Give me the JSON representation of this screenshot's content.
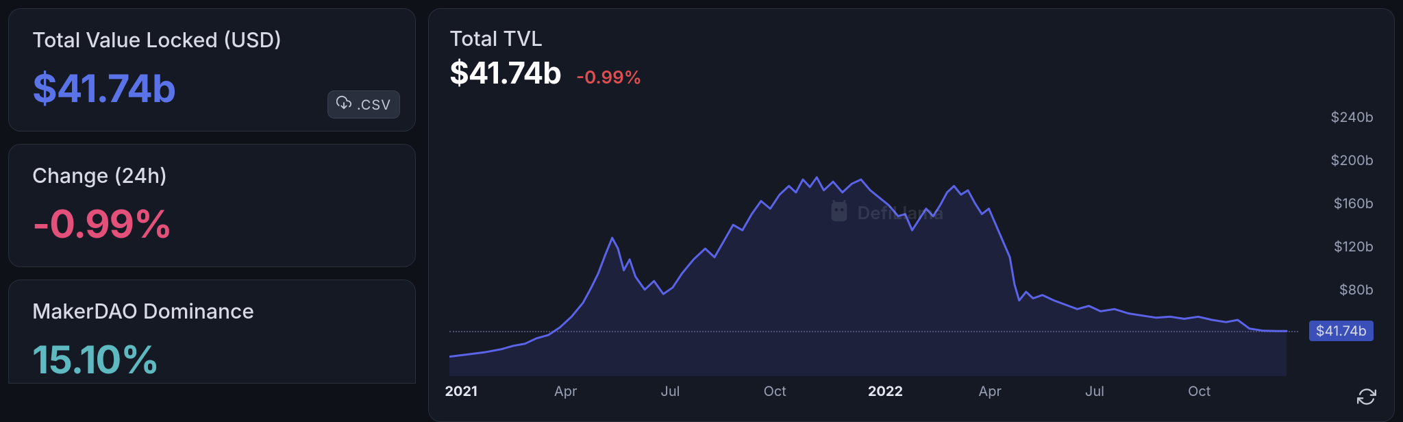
{
  "sidebar": {
    "tvl_card": {
      "title": "Total Value Locked (USD)",
      "value": "$41.74b"
    },
    "csv_label": ".CSV",
    "change_card": {
      "title": "Change (24h)",
      "value": "-0.99%"
    },
    "dominance_card": {
      "title": "MakerDAO Dominance",
      "value": "15.10%"
    }
  },
  "chart": {
    "title": "Total TVL",
    "value": "$41.74b",
    "change": "-0.99%",
    "watermark": "DefiLlama",
    "type": "area",
    "y_axis": {
      "min": 0,
      "max": 260,
      "ticks": [
        {
          "v": 240,
          "label": "$240b"
        },
        {
          "v": 200,
          "label": "$200b"
        },
        {
          "v": 160,
          "label": "$160b"
        },
        {
          "v": 120,
          "label": "$120b"
        },
        {
          "v": 80,
          "label": "$80b"
        }
      ],
      "current": {
        "v": 41.74,
        "label": "$41.74b"
      }
    },
    "x_axis": {
      "min": 0,
      "max": 730,
      "ticks": [
        {
          "d": 10,
          "label": "2021",
          "bold": true
        },
        {
          "d": 100,
          "label": "Apr"
        },
        {
          "d": 190,
          "label": "Jul"
        },
        {
          "d": 280,
          "label": "Oct"
        },
        {
          "d": 375,
          "label": "2022",
          "bold": true
        },
        {
          "d": 465,
          "label": "Apr"
        },
        {
          "d": 555,
          "label": "Jul"
        },
        {
          "d": 645,
          "label": "Oct"
        }
      ]
    },
    "style": {
      "line_color": "#5b64e8",
      "line_width": 3,
      "fill_color": "#5b64e8",
      "fill_opacity": 0.12,
      "background": "#151924",
      "dotted_line_color": "#4a5070"
    },
    "series": [
      {
        "d": 0,
        "v": 18
      },
      {
        "d": 15,
        "v": 20
      },
      {
        "d": 30,
        "v": 22
      },
      {
        "d": 45,
        "v": 25
      },
      {
        "d": 55,
        "v": 28
      },
      {
        "d": 65,
        "v": 30
      },
      {
        "d": 75,
        "v": 35
      },
      {
        "d": 85,
        "v": 38
      },
      {
        "d": 95,
        "v": 45
      },
      {
        "d": 105,
        "v": 55
      },
      {
        "d": 115,
        "v": 68
      },
      {
        "d": 122,
        "v": 82
      },
      {
        "d": 128,
        "v": 95
      },
      {
        "d": 134,
        "v": 112
      },
      {
        "d": 140,
        "v": 128
      },
      {
        "d": 145,
        "v": 118
      },
      {
        "d": 150,
        "v": 98
      },
      {
        "d": 155,
        "v": 108
      },
      {
        "d": 160,
        "v": 92
      },
      {
        "d": 168,
        "v": 80
      },
      {
        "d": 176,
        "v": 88
      },
      {
        "d": 184,
        "v": 76
      },
      {
        "d": 192,
        "v": 82
      },
      {
        "d": 200,
        "v": 95
      },
      {
        "d": 210,
        "v": 108
      },
      {
        "d": 220,
        "v": 118
      },
      {
        "d": 228,
        "v": 110
      },
      {
        "d": 236,
        "v": 125
      },
      {
        "d": 244,
        "v": 140
      },
      {
        "d": 252,
        "v": 135
      },
      {
        "d": 260,
        "v": 150
      },
      {
        "d": 268,
        "v": 162
      },
      {
        "d": 276,
        "v": 155
      },
      {
        "d": 284,
        "v": 168
      },
      {
        "d": 292,
        "v": 176
      },
      {
        "d": 298,
        "v": 170
      },
      {
        "d": 304,
        "v": 182
      },
      {
        "d": 310,
        "v": 175
      },
      {
        "d": 316,
        "v": 184
      },
      {
        "d": 322,
        "v": 172
      },
      {
        "d": 330,
        "v": 180
      },
      {
        "d": 338,
        "v": 170
      },
      {
        "d": 346,
        "v": 178
      },
      {
        "d": 354,
        "v": 182
      },
      {
        "d": 362,
        "v": 172
      },
      {
        "d": 370,
        "v": 165
      },
      {
        "d": 378,
        "v": 158
      },
      {
        "d": 386,
        "v": 148
      },
      {
        "d": 392,
        "v": 150
      },
      {
        "d": 398,
        "v": 135
      },
      {
        "d": 404,
        "v": 145
      },
      {
        "d": 410,
        "v": 155
      },
      {
        "d": 416,
        "v": 148
      },
      {
        "d": 422,
        "v": 158
      },
      {
        "d": 428,
        "v": 170
      },
      {
        "d": 434,
        "v": 176
      },
      {
        "d": 440,
        "v": 168
      },
      {
        "d": 446,
        "v": 172
      },
      {
        "d": 452,
        "v": 160
      },
      {
        "d": 458,
        "v": 150
      },
      {
        "d": 464,
        "v": 155
      },
      {
        "d": 470,
        "v": 140
      },
      {
        "d": 476,
        "v": 125
      },
      {
        "d": 482,
        "v": 110
      },
      {
        "d": 486,
        "v": 85
      },
      {
        "d": 490,
        "v": 70
      },
      {
        "d": 496,
        "v": 78
      },
      {
        "d": 502,
        "v": 72
      },
      {
        "d": 510,
        "v": 75
      },
      {
        "d": 520,
        "v": 70
      },
      {
        "d": 530,
        "v": 66
      },
      {
        "d": 540,
        "v": 62
      },
      {
        "d": 550,
        "v": 65
      },
      {
        "d": 560,
        "v": 60
      },
      {
        "d": 572,
        "v": 62
      },
      {
        "d": 584,
        "v": 58
      },
      {
        "d": 596,
        "v": 56
      },
      {
        "d": 608,
        "v": 54
      },
      {
        "d": 620,
        "v": 55
      },
      {
        "d": 632,
        "v": 53
      },
      {
        "d": 644,
        "v": 55
      },
      {
        "d": 656,
        "v": 52
      },
      {
        "d": 668,
        "v": 50
      },
      {
        "d": 678,
        "v": 52
      },
      {
        "d": 688,
        "v": 44
      },
      {
        "d": 700,
        "v": 42
      },
      {
        "d": 712,
        "v": 41.74
      },
      {
        "d": 720,
        "v": 41.74
      }
    ]
  }
}
